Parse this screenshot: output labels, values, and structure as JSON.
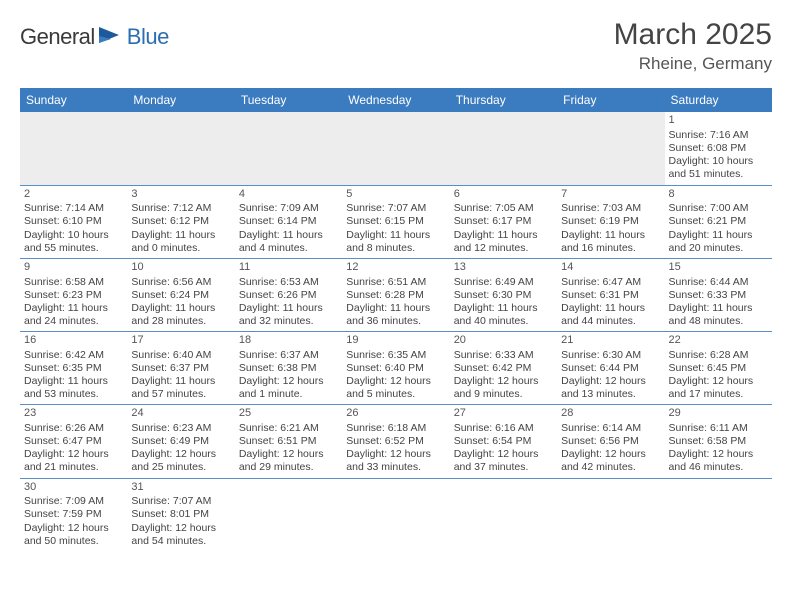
{
  "brand": {
    "part1": "General",
    "part2": "Blue",
    "color1": "#3a3a3a",
    "color2": "#2b6fb0"
  },
  "title": "March 2025",
  "location": "Rheine, Germany",
  "header_bg": "#3b7bbf",
  "border_color": "#5a8fc4",
  "day_headers": [
    "Sunday",
    "Monday",
    "Tuesday",
    "Wednesday",
    "Thursday",
    "Friday",
    "Saturday"
  ],
  "weeks": [
    [
      null,
      null,
      null,
      null,
      null,
      null,
      {
        "n": "1",
        "sr": "Sunrise: 7:16 AM",
        "ss": "Sunset: 6:08 PM",
        "dl": "Daylight: 10 hours and 51 minutes."
      }
    ],
    [
      {
        "n": "2",
        "sr": "Sunrise: 7:14 AM",
        "ss": "Sunset: 6:10 PM",
        "dl": "Daylight: 10 hours and 55 minutes."
      },
      {
        "n": "3",
        "sr": "Sunrise: 7:12 AM",
        "ss": "Sunset: 6:12 PM",
        "dl": "Daylight: 11 hours and 0 minutes."
      },
      {
        "n": "4",
        "sr": "Sunrise: 7:09 AM",
        "ss": "Sunset: 6:14 PM",
        "dl": "Daylight: 11 hours and 4 minutes."
      },
      {
        "n": "5",
        "sr": "Sunrise: 7:07 AM",
        "ss": "Sunset: 6:15 PM",
        "dl": "Daylight: 11 hours and 8 minutes."
      },
      {
        "n": "6",
        "sr": "Sunrise: 7:05 AM",
        "ss": "Sunset: 6:17 PM",
        "dl": "Daylight: 11 hours and 12 minutes."
      },
      {
        "n": "7",
        "sr": "Sunrise: 7:03 AM",
        "ss": "Sunset: 6:19 PM",
        "dl": "Daylight: 11 hours and 16 minutes."
      },
      {
        "n": "8",
        "sr": "Sunrise: 7:00 AM",
        "ss": "Sunset: 6:21 PM",
        "dl": "Daylight: 11 hours and 20 minutes."
      }
    ],
    [
      {
        "n": "9",
        "sr": "Sunrise: 6:58 AM",
        "ss": "Sunset: 6:23 PM",
        "dl": "Daylight: 11 hours and 24 minutes."
      },
      {
        "n": "10",
        "sr": "Sunrise: 6:56 AM",
        "ss": "Sunset: 6:24 PM",
        "dl": "Daylight: 11 hours and 28 minutes."
      },
      {
        "n": "11",
        "sr": "Sunrise: 6:53 AM",
        "ss": "Sunset: 6:26 PM",
        "dl": "Daylight: 11 hours and 32 minutes."
      },
      {
        "n": "12",
        "sr": "Sunrise: 6:51 AM",
        "ss": "Sunset: 6:28 PM",
        "dl": "Daylight: 11 hours and 36 minutes."
      },
      {
        "n": "13",
        "sr": "Sunrise: 6:49 AM",
        "ss": "Sunset: 6:30 PM",
        "dl": "Daylight: 11 hours and 40 minutes."
      },
      {
        "n": "14",
        "sr": "Sunrise: 6:47 AM",
        "ss": "Sunset: 6:31 PM",
        "dl": "Daylight: 11 hours and 44 minutes."
      },
      {
        "n": "15",
        "sr": "Sunrise: 6:44 AM",
        "ss": "Sunset: 6:33 PM",
        "dl": "Daylight: 11 hours and 48 minutes."
      }
    ],
    [
      {
        "n": "16",
        "sr": "Sunrise: 6:42 AM",
        "ss": "Sunset: 6:35 PM",
        "dl": "Daylight: 11 hours and 53 minutes."
      },
      {
        "n": "17",
        "sr": "Sunrise: 6:40 AM",
        "ss": "Sunset: 6:37 PM",
        "dl": "Daylight: 11 hours and 57 minutes."
      },
      {
        "n": "18",
        "sr": "Sunrise: 6:37 AM",
        "ss": "Sunset: 6:38 PM",
        "dl": "Daylight: 12 hours and 1 minute."
      },
      {
        "n": "19",
        "sr": "Sunrise: 6:35 AM",
        "ss": "Sunset: 6:40 PM",
        "dl": "Daylight: 12 hours and 5 minutes."
      },
      {
        "n": "20",
        "sr": "Sunrise: 6:33 AM",
        "ss": "Sunset: 6:42 PM",
        "dl": "Daylight: 12 hours and 9 minutes."
      },
      {
        "n": "21",
        "sr": "Sunrise: 6:30 AM",
        "ss": "Sunset: 6:44 PM",
        "dl": "Daylight: 12 hours and 13 minutes."
      },
      {
        "n": "22",
        "sr": "Sunrise: 6:28 AM",
        "ss": "Sunset: 6:45 PM",
        "dl": "Daylight: 12 hours and 17 minutes."
      }
    ],
    [
      {
        "n": "23",
        "sr": "Sunrise: 6:26 AM",
        "ss": "Sunset: 6:47 PM",
        "dl": "Daylight: 12 hours and 21 minutes."
      },
      {
        "n": "24",
        "sr": "Sunrise: 6:23 AM",
        "ss": "Sunset: 6:49 PM",
        "dl": "Daylight: 12 hours and 25 minutes."
      },
      {
        "n": "25",
        "sr": "Sunrise: 6:21 AM",
        "ss": "Sunset: 6:51 PM",
        "dl": "Daylight: 12 hours and 29 minutes."
      },
      {
        "n": "26",
        "sr": "Sunrise: 6:18 AM",
        "ss": "Sunset: 6:52 PM",
        "dl": "Daylight: 12 hours and 33 minutes."
      },
      {
        "n": "27",
        "sr": "Sunrise: 6:16 AM",
        "ss": "Sunset: 6:54 PM",
        "dl": "Daylight: 12 hours and 37 minutes."
      },
      {
        "n": "28",
        "sr": "Sunrise: 6:14 AM",
        "ss": "Sunset: 6:56 PM",
        "dl": "Daylight: 12 hours and 42 minutes."
      },
      {
        "n": "29",
        "sr": "Sunrise: 6:11 AM",
        "ss": "Sunset: 6:58 PM",
        "dl": "Daylight: 12 hours and 46 minutes."
      }
    ],
    [
      {
        "n": "30",
        "sr": "Sunrise: 7:09 AM",
        "ss": "Sunset: 7:59 PM",
        "dl": "Daylight: 12 hours and 50 minutes."
      },
      {
        "n": "31",
        "sr": "Sunrise: 7:07 AM",
        "ss": "Sunset: 8:01 PM",
        "dl": "Daylight: 12 hours and 54 minutes."
      },
      null,
      null,
      null,
      null,
      null
    ]
  ]
}
